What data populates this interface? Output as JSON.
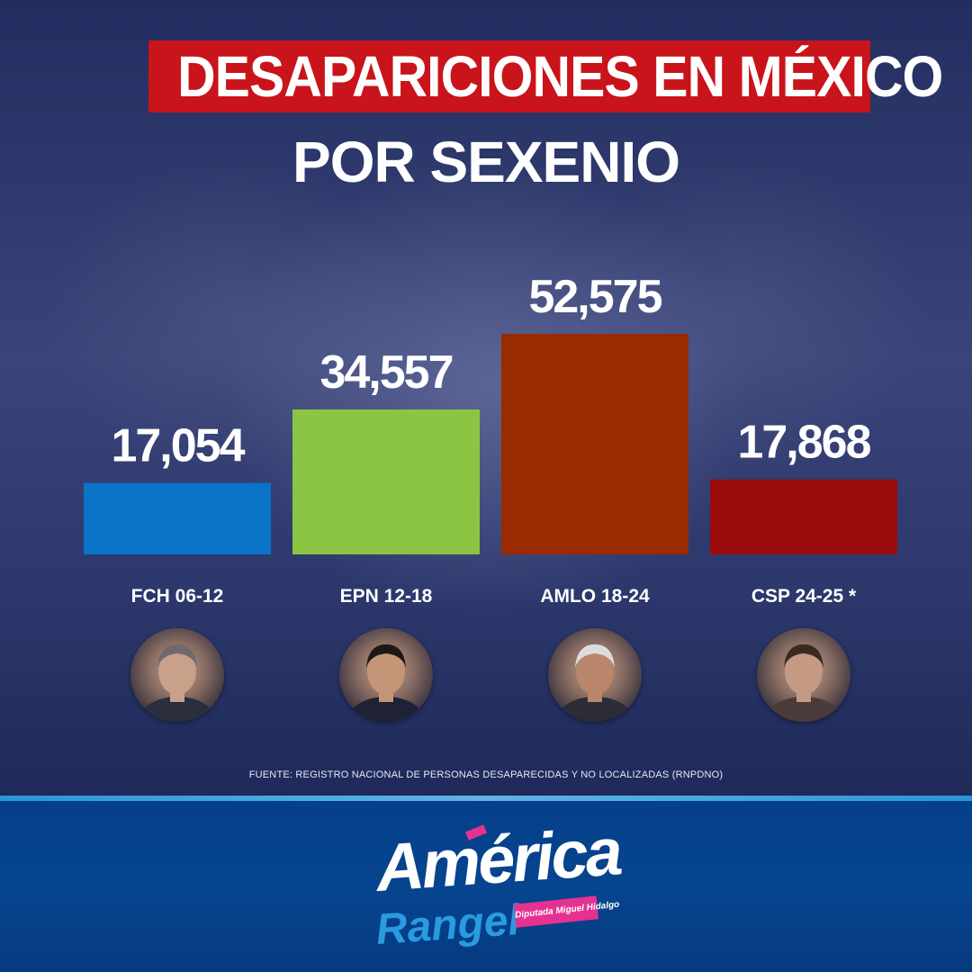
{
  "header": {
    "title": "DESAPARICIONES EN MÉXICO",
    "subtitle": "POR SEXENIO"
  },
  "chart_data": {
    "type": "bar",
    "title": "DESAPARICIONES EN MÉXICO",
    "subtitle": "POR SEXENIO",
    "categories": [
      "FCH 06-12",
      "EPN 12-18",
      "AMLO 18-24",
      "CSP 24-25 *"
    ],
    "values": [
      17054,
      34557,
      52575,
      17868
    ],
    "value_labels": [
      "17,054",
      "34,557",
      "52,575",
      "17,868"
    ],
    "colors": [
      "#0a74c9",
      "#8cc443",
      "#9a2a00",
      "#9b0a0a"
    ],
    "ylim": [
      0,
      52575
    ],
    "grid": false,
    "legend": "none"
  },
  "avatars": [
    {
      "icon": "person-photo-icon",
      "skin": "#c9a089",
      "hair": "#6f6a6a",
      "suit": "#2b2f3d"
    },
    {
      "icon": "person-photo-icon",
      "skin": "#c69578",
      "hair": "#1c1818",
      "suit": "#1f2235"
    },
    {
      "icon": "person-photo-icon",
      "skin": "#b9866c",
      "hair": "#dcdcdc",
      "suit": "#2c2c36"
    },
    {
      "icon": "person-photo-icon",
      "skin": "#c49a85",
      "hair": "#3a2a22",
      "suit": "#4a3a3a"
    }
  ],
  "source": "FUENTE: REGISTRO NACIONAL DE PERSONAS DESAPARECIDAS Y NO LOCALIZADAS (RNPDNO)",
  "logo": {
    "line1": "América",
    "line2": "Rangel",
    "tag": "Diputada Miguel Hidalgo"
  }
}
